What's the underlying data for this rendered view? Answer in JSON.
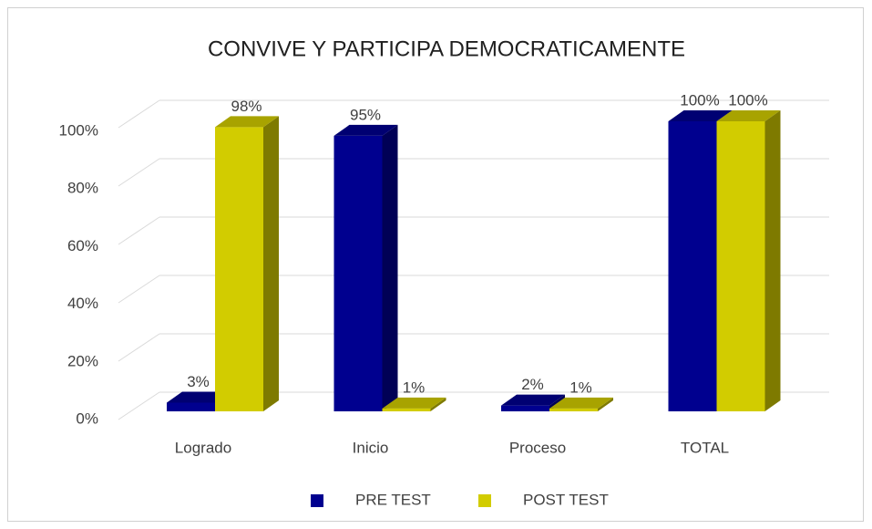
{
  "chart_data": {
    "type": "bar3d",
    "title": "CONVIVE Y PARTICIPA DEMOCRATICAMENTE",
    "categories": [
      "Logrado",
      "Inicio",
      "Proceso",
      "TOTAL"
    ],
    "series": [
      {
        "name": "PRE TEST",
        "color": "#00008f",
        "values": [
          3,
          95,
          2,
          100
        ],
        "value_labels": [
          "3%",
          "95%",
          "2%",
          "100%"
        ]
      },
      {
        "name": "POST TEST",
        "color": "#d2cc00",
        "values": [
          98,
          1,
          1,
          100
        ],
        "value_labels": [
          "98%",
          "1%",
          "1%",
          "100%"
        ]
      }
    ],
    "ylim": [
      0,
      100
    ],
    "yticks": [
      {
        "value": 0,
        "label": "0%"
      },
      {
        "value": 20,
        "label": "20%"
      },
      {
        "value": 40,
        "label": "40%"
      },
      {
        "value": 60,
        "label": "60%"
      },
      {
        "value": 80,
        "label": "80%"
      },
      {
        "value": 100,
        "label": "100%"
      }
    ],
    "grid": true,
    "legend": "bottom"
  }
}
